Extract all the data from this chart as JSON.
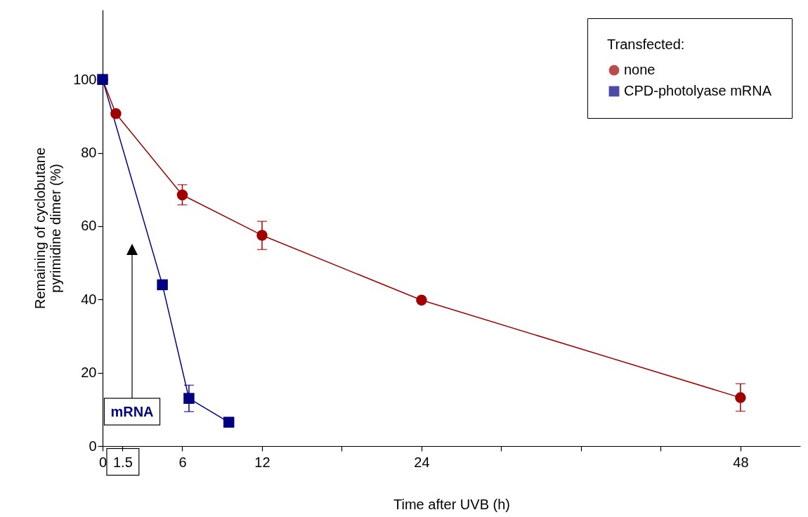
{
  "chart_data": {
    "type": "line",
    "xlabel": "Time after UVB (h)",
    "ylabel": "Remaining of cyclobutane pyrimidine dimer (%)",
    "legend_title": "Transfected:",
    "legend": "top right",
    "grid": false,
    "xlim": [
      0,
      52.5
    ],
    "xticks": [
      0,
      1.5,
      6,
      12,
      {
        "value": 18,
        "label": null
      },
      24,
      {
        "value": 30,
        "label": null
      },
      {
        "value": 36,
        "label": null
      },
      {
        "value": 42,
        "label": null
      },
      48
    ],
    "ylim": [
      0,
      119
    ],
    "yticks": [
      0,
      20,
      40,
      60,
      80,
      100
    ],
    "series": [
      {
        "name": "none",
        "color": "#a00000",
        "marker": "circle",
        "x": [
          0,
          1,
          6,
          12,
          24,
          48
        ],
        "values": [
          100,
          90.7,
          68.5,
          57.5,
          39.8,
          13.2
        ],
        "errors": [
          null,
          null,
          [
            65.8,
            71.3
          ],
          [
            53.6,
            61.3
          ],
          null,
          [
            9.5,
            17
          ]
        ]
      },
      {
        "name": "CPD-photolyase mRNA",
        "color": "#000080",
        "marker": "square",
        "x": [
          0,
          4.5,
          6.5,
          9.5
        ],
        "values": [
          100,
          44,
          13,
          6.5
        ],
        "errors": [
          null,
          null,
          [
            9.4,
            16.6
          ],
          null
        ]
      }
    ],
    "annotations": [
      "mRNA"
    ]
  }
}
